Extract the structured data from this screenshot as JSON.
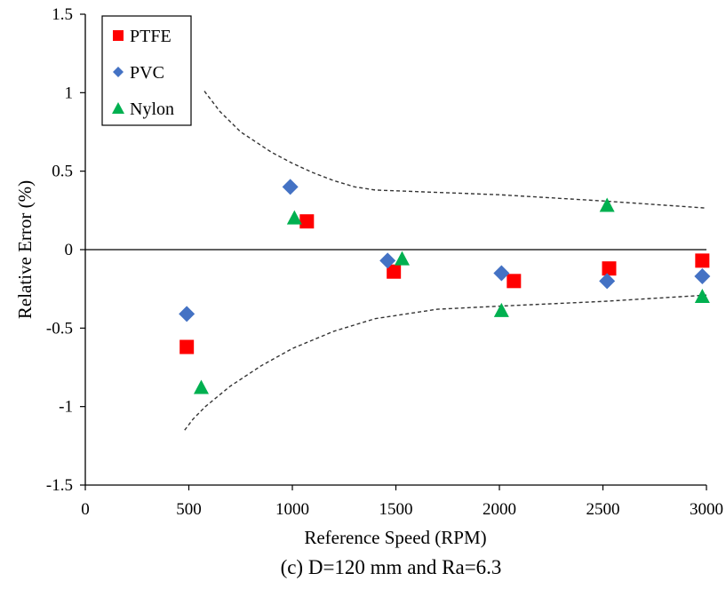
{
  "caption": "(c) D=120 mm and Ra=6.3",
  "chart_data": {
    "type": "scatter",
    "xlabel": "Reference Speed (RPM)",
    "ylabel": "Relative Error (%)",
    "xlim": [
      0,
      3000
    ],
    "ylim": [
      -1.5,
      1.5
    ],
    "x_ticks": [
      0,
      500,
      1000,
      1500,
      2000,
      2500,
      3000
    ],
    "x_tick_labels": [
      "0",
      "500",
      "1000",
      "1500",
      "2000",
      "2500",
      "3000"
    ],
    "y_ticks": [
      -1.5,
      -1,
      -0.5,
      0,
      0.5,
      1,
      1.5
    ],
    "y_tick_labels": [
      "-1.5",
      "-1",
      "-0.5",
      "0",
      "0.5",
      "1",
      "1.5"
    ],
    "grid": false,
    "legend_position": "top-left",
    "series": [
      {
        "name": "PTFE",
        "marker": "square",
        "color": "#ff0000",
        "points": [
          [
            490,
            -0.62
          ],
          [
            1070,
            0.18
          ],
          [
            1490,
            -0.14
          ],
          [
            2070,
            -0.2
          ],
          [
            2530,
            -0.12
          ],
          [
            2980,
            -0.07
          ]
        ]
      },
      {
        "name": "PVC",
        "marker": "diamond",
        "color": "#4472c4",
        "points": [
          [
            490,
            -0.41
          ],
          [
            990,
            0.4
          ],
          [
            1460,
            -0.07
          ],
          [
            2010,
            -0.15
          ],
          [
            2520,
            -0.2
          ],
          [
            2980,
            -0.17
          ]
        ]
      },
      {
        "name": "Nylon",
        "marker": "triangle",
        "color": "#00b050",
        "points": [
          [
            560,
            -0.88
          ],
          [
            1010,
            0.2
          ],
          [
            1530,
            -0.06
          ],
          [
            2010,
            -0.39
          ],
          [
            2520,
            0.28
          ],
          [
            2980,
            -0.3
          ]
        ]
      }
    ],
    "bounds": {
      "style": "dashed",
      "color": "#333333",
      "upper": [
        [
          575,
          1.01
        ],
        [
          650,
          0.88
        ],
        [
          750,
          0.75
        ],
        [
          900,
          0.62
        ],
        [
          1000,
          0.55
        ],
        [
          1100,
          0.49
        ],
        [
          1200,
          0.44
        ],
        [
          1300,
          0.4
        ],
        [
          1400,
          0.38
        ],
        [
          1500,
          0.375
        ],
        [
          2000,
          0.35
        ],
        [
          2500,
          0.31
        ],
        [
          3000,
          0.265
        ]
      ],
      "lower": [
        [
          480,
          -1.15
        ],
        [
          520,
          -1.08
        ],
        [
          580,
          -1.0
        ],
        [
          700,
          -0.87
        ],
        [
          850,
          -0.74
        ],
        [
          1000,
          -0.63
        ],
        [
          1200,
          -0.52
        ],
        [
          1400,
          -0.44
        ],
        [
          1700,
          -0.38
        ],
        [
          2000,
          -0.36
        ],
        [
          2500,
          -0.33
        ],
        [
          3000,
          -0.29
        ]
      ]
    },
    "zero_line": true
  }
}
